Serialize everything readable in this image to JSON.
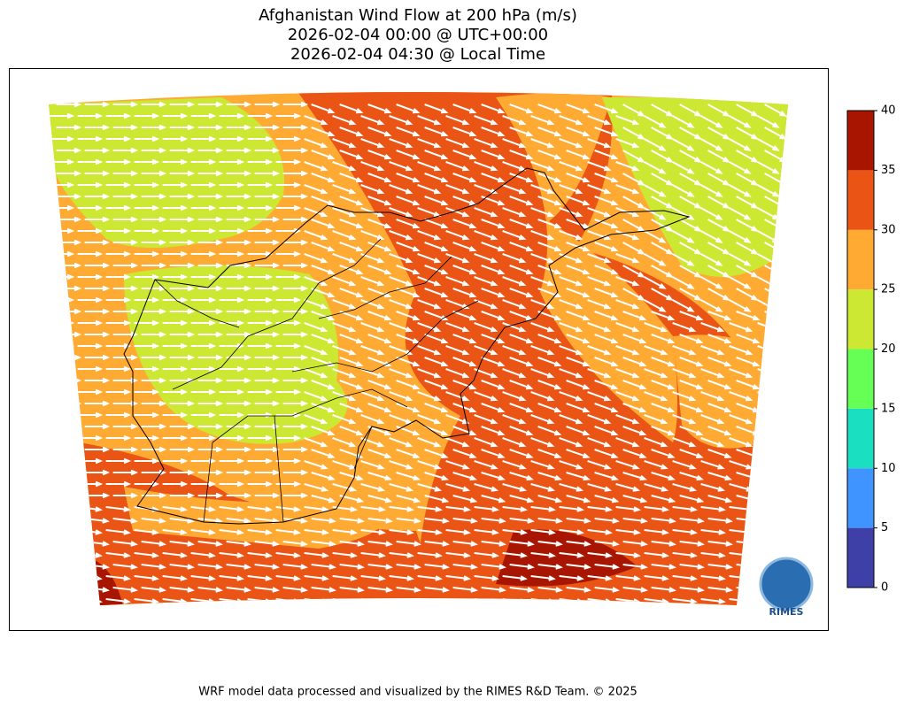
{
  "title": [
    "Afghanistan Wind Flow at 200 hPa (m/s)",
    "2026-02-04 00:00 @ UTC+00:00",
    "2026-02-04 04:30 @ Local Time"
  ],
  "colorbar": {
    "lim": [
      0,
      40
    ],
    "ticks": [
      0,
      5,
      10,
      15,
      20,
      25,
      30,
      35,
      40
    ],
    "colors": [
      "#3f3fa8",
      "#3f94ff",
      "#1adfc0",
      "#66ff55",
      "#cce833",
      "#ffaa33",
      "#ea5516",
      "#a81500"
    ]
  },
  "logo": "RIMES",
  "footer": "WRF model data processed and visualized by the RIMES R&D Team. © 2025"
}
